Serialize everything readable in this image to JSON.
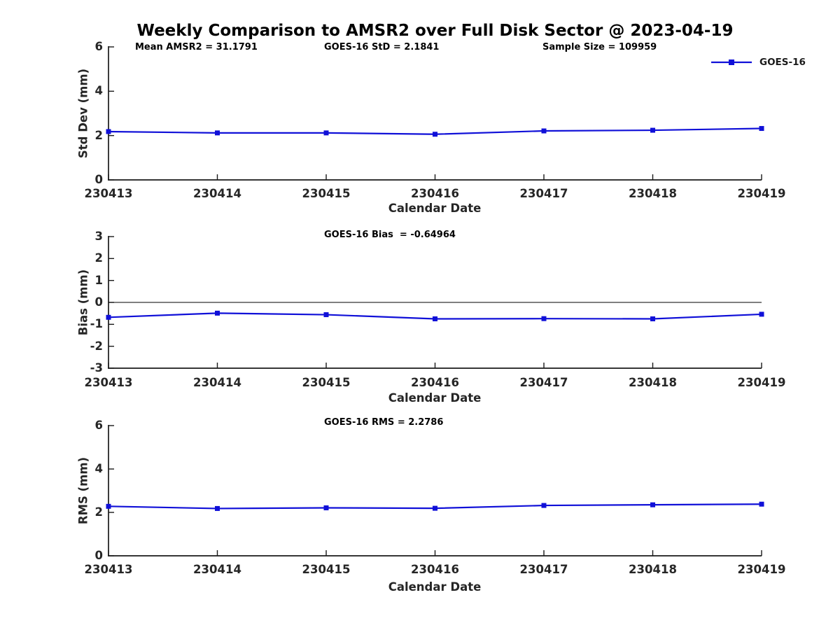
{
  "figure": {
    "title": "Weekly Comparison to AMSR2 over Full Disk Sector @ 2023-04-19",
    "legend": {
      "label": "GOES-16"
    }
  },
  "colors": {
    "line": "#1010d8",
    "axis": "#1a1a1a",
    "zero_line": "#000000"
  },
  "chart_data": [
    {
      "type": "line",
      "categories": [
        "230413",
        "230414",
        "230415",
        "230416",
        "230417",
        "230418",
        "230419"
      ],
      "xlabel": "Calendar Date",
      "ylabel": "Std Dev (mm)",
      "ylim": [
        0,
        6
      ],
      "yticks": [
        0,
        2,
        4,
        6
      ],
      "grid": false,
      "legend_position": "top-right-no-box",
      "annotations": [
        "Mean AMSR2 = 31.1791",
        "GOES-16 StD = 2.1841",
        "Sample Size = 109959"
      ],
      "series": [
        {
          "name": "GOES-16",
          "marker": "square",
          "values": [
            2.18,
            2.12,
            2.12,
            2.06,
            2.21,
            2.24,
            2.32
          ]
        }
      ]
    },
    {
      "type": "line",
      "categories": [
        "230413",
        "230414",
        "230415",
        "230416",
        "230417",
        "230418",
        "230419"
      ],
      "xlabel": "Calendar Date",
      "ylabel": "Bias (mm)",
      "ylim": [
        -3,
        3
      ],
      "yticks": [
        -3,
        -2,
        -1,
        0,
        1,
        2,
        3
      ],
      "grid": false,
      "zero_line": true,
      "annotations": [
        "GOES-16 Bias  = -0.64964"
      ],
      "series": [
        {
          "name": "GOES-16",
          "marker": "square",
          "values": [
            -0.68,
            -0.49,
            -0.56,
            -0.75,
            -0.74,
            -0.75,
            -0.54
          ]
        }
      ]
    },
    {
      "type": "line",
      "categories": [
        "230413",
        "230414",
        "230415",
        "230416",
        "230417",
        "230418",
        "230419"
      ],
      "xlabel": "Calendar Date",
      "ylabel": "RMS (mm)",
      "ylim": [
        0,
        6
      ],
      "yticks": [
        0,
        2,
        4,
        6
      ],
      "grid": false,
      "annotations": [
        "GOES-16 RMS = 2.2786"
      ],
      "series": [
        {
          "name": "GOES-16",
          "marker": "square",
          "values": [
            2.28,
            2.18,
            2.21,
            2.19,
            2.32,
            2.35,
            2.38
          ]
        }
      ]
    }
  ]
}
